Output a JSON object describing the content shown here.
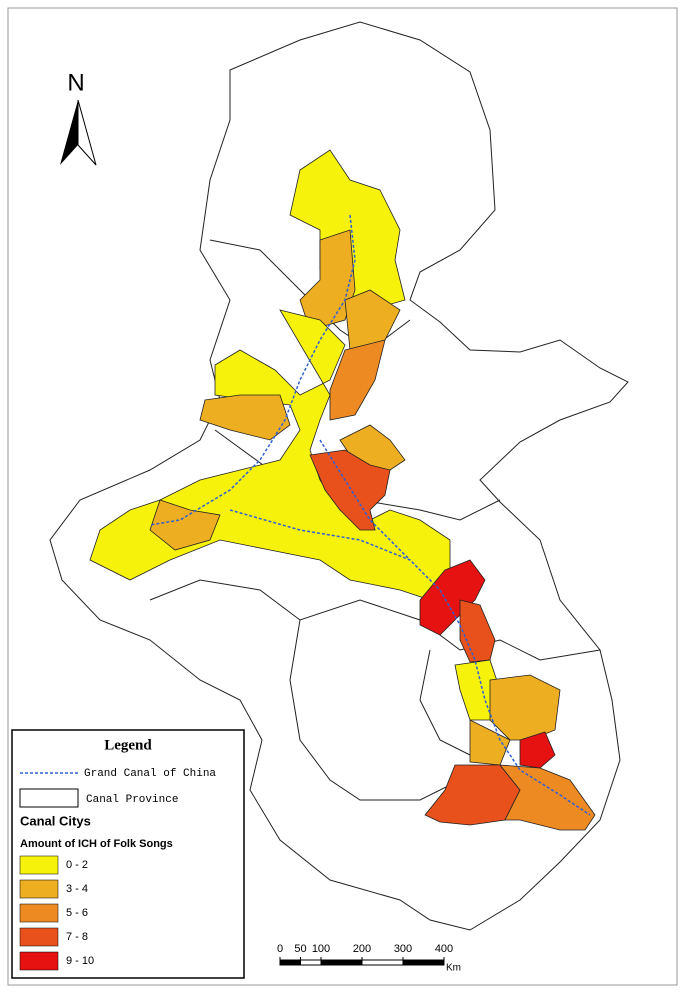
{
  "north_arrow": {
    "label": "N"
  },
  "legend": {
    "title": "Legend",
    "canal": "Grand Canal of China",
    "province": "Canal Province",
    "cities_title": "Canal Citys",
    "classes_title": "Amount of ICH of Folk Songs",
    "classes": [
      {
        "label": "0 - 2",
        "color": "#f6f20c"
      },
      {
        "label": "3 - 4",
        "color": "#eeae22"
      },
      {
        "label": "5 - 6",
        "color": "#ee8a22"
      },
      {
        "label": "7 - 8",
        "color": "#e8501c"
      },
      {
        "label": "9 - 10",
        "color": "#e61212"
      }
    ]
  },
  "scale_bar": {
    "ticks": [
      0,
      50,
      100,
      200,
      300,
      400
    ],
    "unit": "Km"
  }
}
